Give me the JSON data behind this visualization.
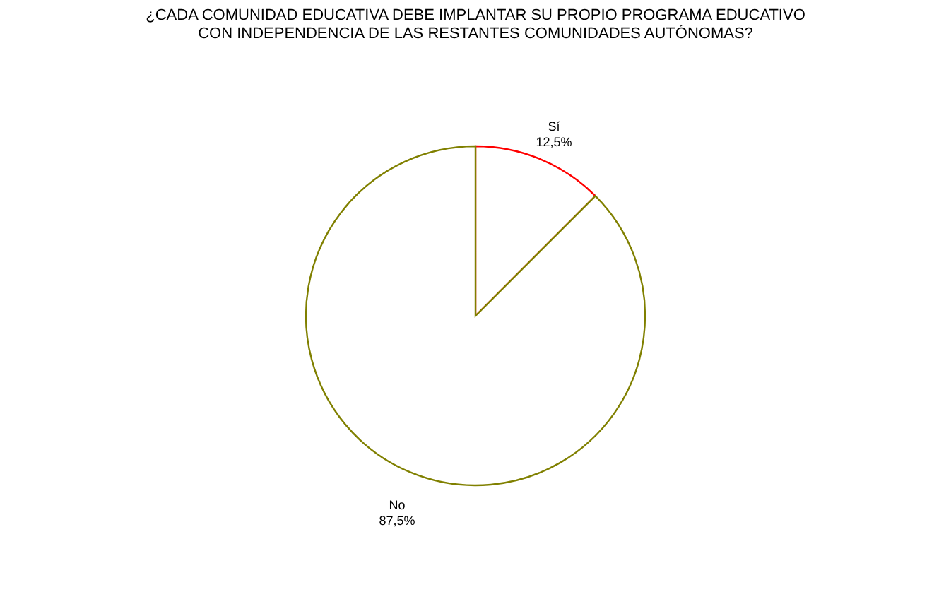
{
  "chart_data": {
    "type": "pie",
    "title": "¿CADA COMUNIDAD EDUCATIVA DEBE IMPLANTAR SU PROPIO PROGRAMA EDUCATIVO\nCON INDEPENDENCIA DE LAS RESTANTES COMUNIDADES AUTÓNOMAS?",
    "categories": [
      "Sí",
      "No"
    ],
    "values": [
      12.5,
      87.5
    ],
    "value_labels": [
      "12,5%",
      "87,5%"
    ],
    "colors": [
      "#ff0000",
      "#808000"
    ],
    "legend": false
  }
}
